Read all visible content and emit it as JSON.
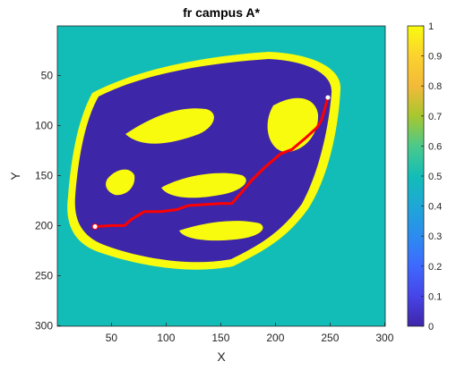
{
  "chart_data": {
    "type": "heatmap",
    "title": "fr campus A*",
    "xlabel": "X",
    "ylabel": "Y",
    "xlim": [
      0.5,
      300.5
    ],
    "ylim": [
      0.5,
      300.5
    ],
    "y_direction": "reverse",
    "xticks": [
      50,
      100,
      150,
      200,
      250,
      300
    ],
    "yticks": [
      50,
      100,
      150,
      200,
      250,
      300
    ],
    "colormap": "parula",
    "colorbar": {
      "limits": [
        0,
        1
      ],
      "ticks": [
        0,
        0.1,
        0.2,
        0.3,
        0.4,
        0.5,
        0.6,
        0.7,
        0.8,
        0.9,
        1
      ],
      "colors": [
        "#3e26a8",
        "#4744e8",
        "#3e69fe",
        "#2c8cef",
        "#1fa7d7",
        "#13bdb7",
        "#4bc98b",
        "#a7c72f",
        "#f3ba39",
        "#fbd22f",
        "#f9fb0e"
      ]
    },
    "background_value": 0.5,
    "region_value": 0,
    "edge_value": 1,
    "path": {
      "color": "#ff0000",
      "start_marker_color": "#ffffff",
      "x": [
        35,
        50,
        62,
        68,
        80,
        95,
        110,
        120,
        135,
        150,
        160,
        168,
        178,
        190,
        205,
        215,
        228,
        238,
        242,
        245,
        248
      ],
      "y": [
        201,
        200,
        200,
        194,
        186,
        186,
        184,
        180,
        179,
        178,
        178,
        168,
        155,
        142,
        128,
        124,
        112,
        102,
        95,
        84,
        72
      ]
    }
  }
}
